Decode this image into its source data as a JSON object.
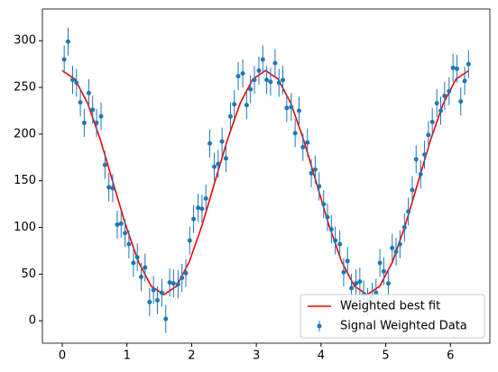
{
  "chart_data": {
    "type": "errorbar-fit",
    "xlim": [
      -0.307,
      6.61
    ],
    "ylim": [
      -24,
      334
    ],
    "xticks": [
      0,
      1,
      2,
      3,
      4,
      5,
      6
    ],
    "yticks": [
      0,
      50,
      100,
      150,
      200,
      250,
      300
    ],
    "grid": false,
    "legend": "lower right",
    "series": [
      {
        "name": "Weighted best fit",
        "kind": "line",
        "color": "#ff0000",
        "x": [
          0,
          0.196,
          0.393,
          0.589,
          0.785,
          0.982,
          1.178,
          1.374,
          1.571,
          1.767,
          1.963,
          2.16,
          2.356,
          2.553,
          2.749,
          2.945,
          3.142,
          3.338,
          3.534,
          3.731,
          3.927,
          4.123,
          4.32,
          4.516,
          4.712,
          4.909,
          5.105,
          5.301,
          5.498,
          5.694,
          5.89,
          6.087,
          6.283
        ],
        "values": [
          268,
          258.9,
          232.9,
          193.9,
          148,
          102.1,
          63.1,
          37.1,
          28,
          37.1,
          63.1,
          102.1,
          148,
          193.9,
          232.9,
          258.9,
          268,
          258.9,
          232.9,
          193.9,
          148,
          102.1,
          63.1,
          37.1,
          28,
          37.1,
          63.1,
          102.1,
          148,
          193.9,
          232.9,
          258.9,
          268
        ]
      },
      {
        "name": "Signal Weighted Data",
        "kind": "errorbar",
        "color": "#1f77b4",
        "yerr": 15,
        "x": [
          0.03,
          0.09,
          0.16,
          0.22,
          0.28,
          0.34,
          0.41,
          0.47,
          0.53,
          0.6,
          0.66,
          0.72,
          0.78,
          0.85,
          0.91,
          0.97,
          1.03,
          1.1,
          1.16,
          1.22,
          1.28,
          1.35,
          1.41,
          1.47,
          1.54,
          1.6,
          1.66,
          1.72,
          1.79,
          1.85,
          1.91,
          1.97,
          2.03,
          2.1,
          2.16,
          2.22,
          2.28,
          2.35,
          2.41,
          2.47,
          2.53,
          2.6,
          2.66,
          2.72,
          2.79,
          2.85,
          2.91,
          2.97,
          3.04,
          3.1,
          3.16,
          3.22,
          3.29,
          3.35,
          3.41,
          3.47,
          3.54,
          3.6,
          3.66,
          3.72,
          3.79,
          3.85,
          3.91,
          3.97,
          4.04,
          4.1,
          4.16,
          4.22,
          4.29,
          4.35,
          4.41,
          4.47,
          4.54,
          4.6,
          4.66,
          4.72,
          4.79,
          4.85,
          4.91,
          4.97,
          5.04,
          5.1,
          5.16,
          5.22,
          5.29,
          5.35,
          5.41,
          5.47,
          5.54,
          5.6,
          5.66,
          5.72,
          5.79,
          5.85,
          5.91,
          5.98,
          6.04,
          6.1,
          6.16,
          6.22,
          6.28
        ],
        "values": [
          280,
          299,
          258,
          255,
          234,
          212,
          244,
          226,
          212,
          219,
          167,
          143,
          142,
          103,
          104,
          94,
          82,
          62,
          68,
          47,
          57,
          20,
          33,
          22,
          30,
          2,
          41,
          40,
          39,
          46,
          51,
          86,
          109,
          121,
          120,
          131,
          190,
          165,
          168,
          192,
          174,
          219,
          232,
          262,
          265,
          231,
          248,
          258,
          268,
          280,
          258,
          256,
          276,
          255,
          258,
          228,
          229,
          201,
          225,
          186,
          191,
          158,
          162,
          144,
          125,
          111,
          98,
          86,
          82,
          52,
          64,
          35,
          40,
          42,
          28,
          20,
          26,
          30,
          62,
          53,
          40,
          78,
          74,
          82,
          100,
          117,
          140,
          173,
          157,
          178,
          199,
          213,
          233,
          225,
          241,
          246,
          271,
          270,
          235,
          257,
          275
        ]
      }
    ]
  }
}
